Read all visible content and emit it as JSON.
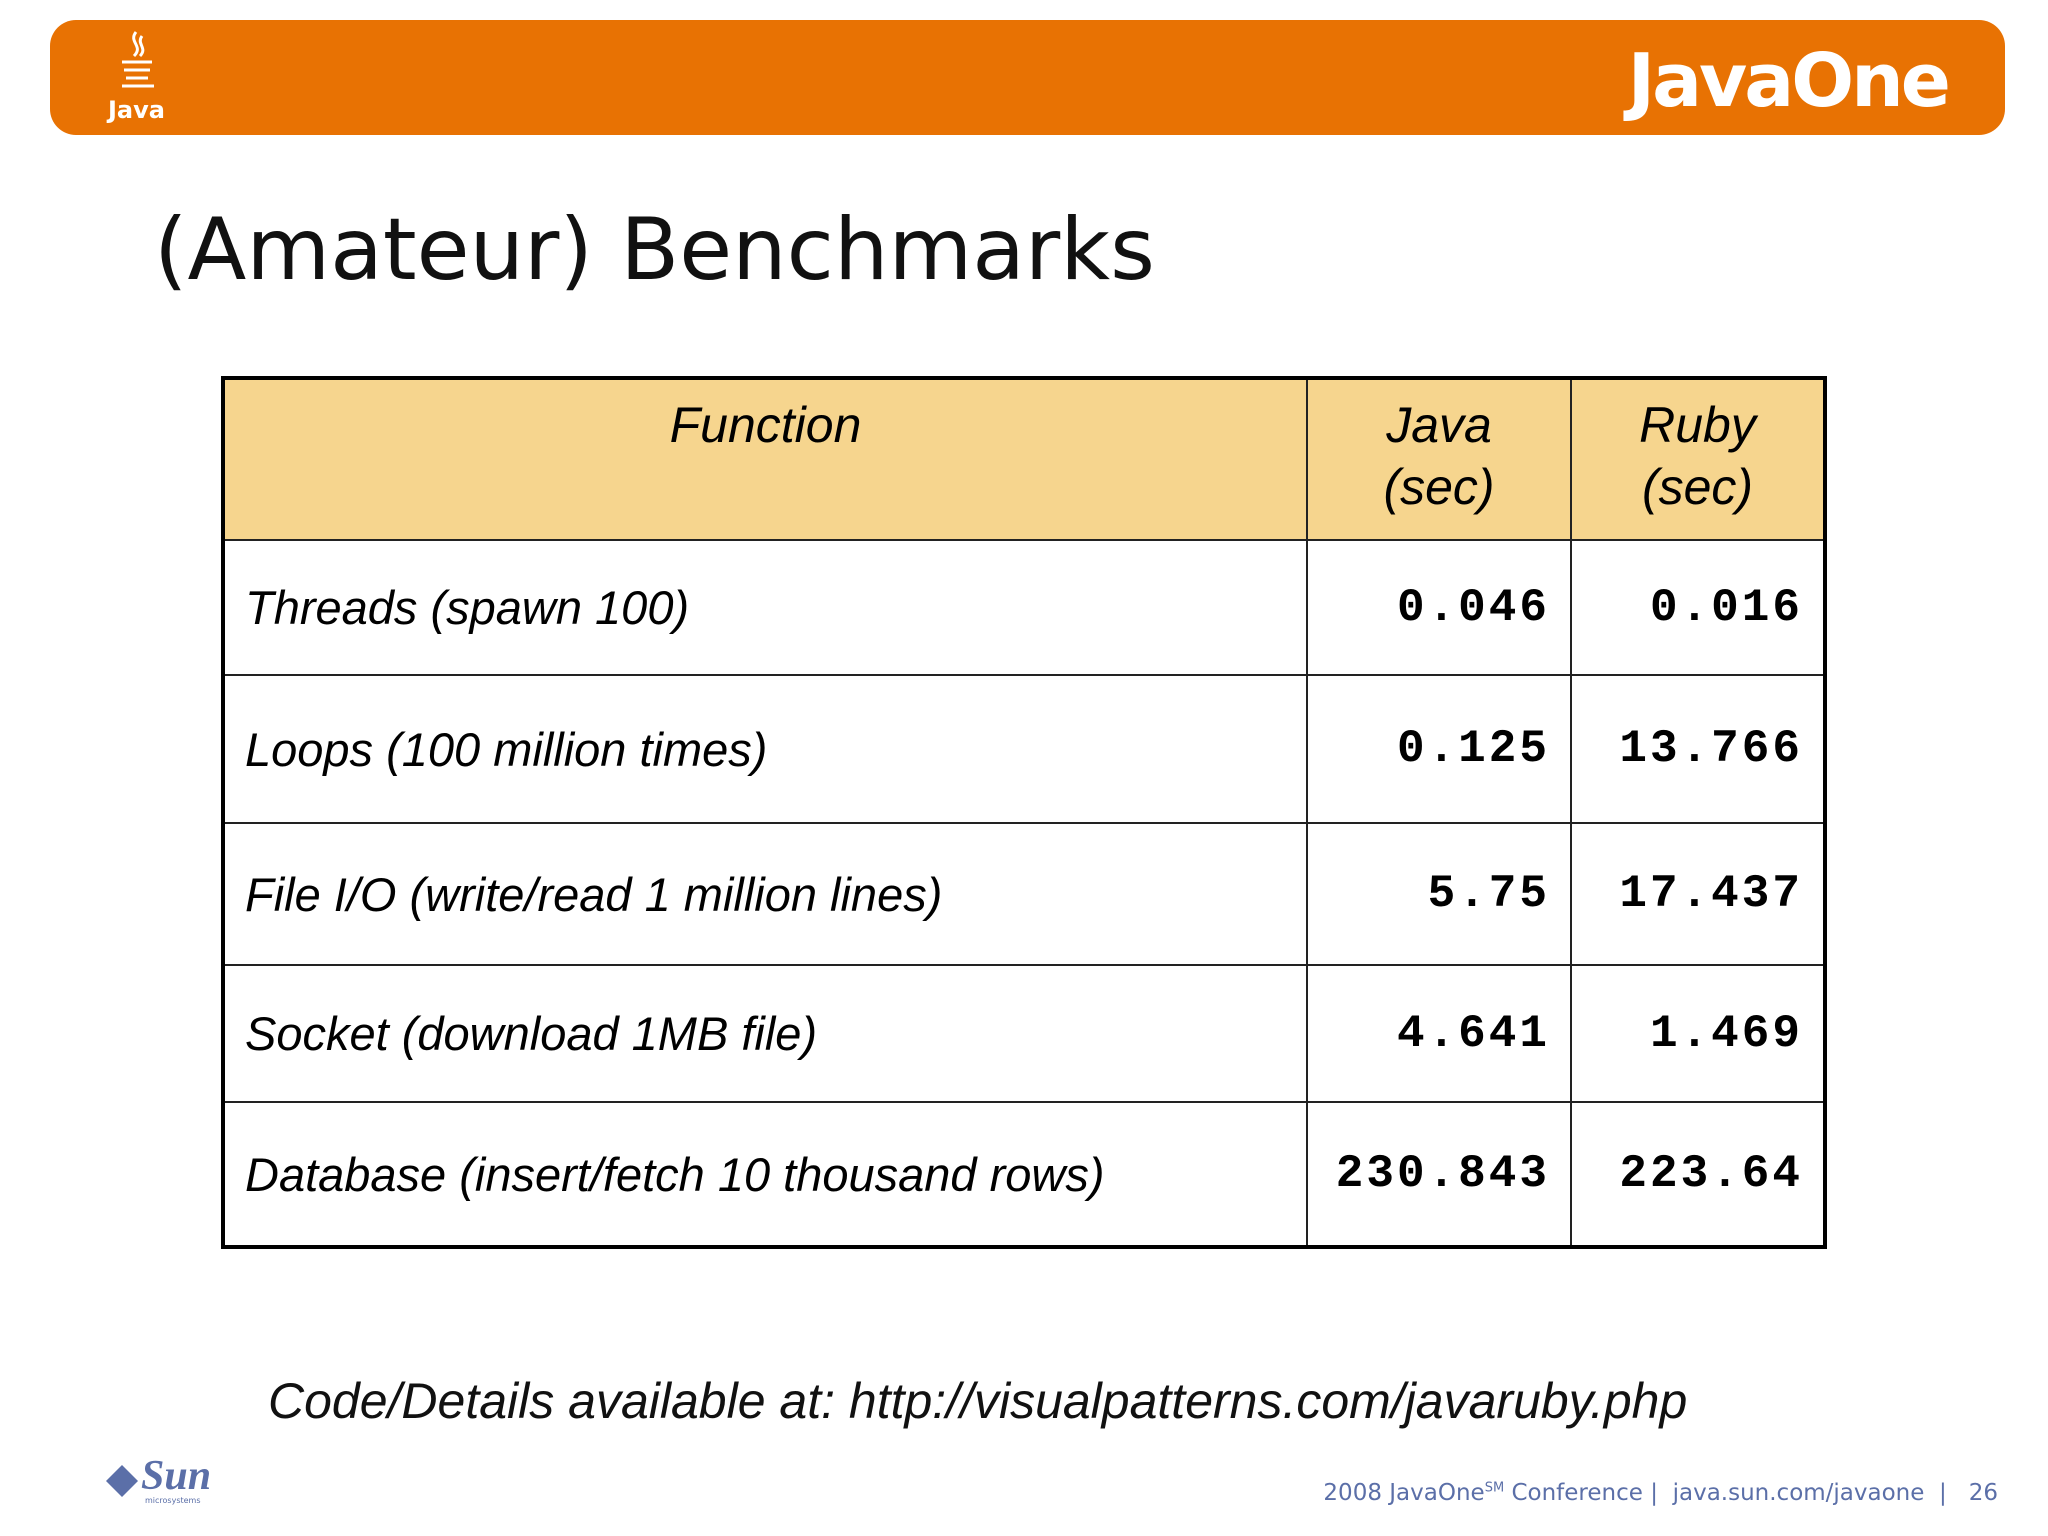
{
  "header": {
    "java_logo": "Java",
    "brand": "JavaOne"
  },
  "title": "(Amateur) Benchmarks",
  "table": {
    "columns": [
      "Function",
      "Java (sec)",
      "Ruby (sec)"
    ],
    "rows": [
      [
        "Threads (spawn 100)",
        "0.046",
        "0.016"
      ],
      [
        "Loops (100 million times)",
        "0.125",
        "13.766"
      ],
      [
        "File I/O (write/read 1 million lines)",
        "5.75",
        "17.437"
      ],
      [
        "Socket (download 1MB file)",
        "4.641",
        "1.469"
      ],
      [
        "Database (insert/fetch 10 thousand rows)",
        "230.843",
        "223.64"
      ]
    ]
  },
  "note": "Code/Details available at: http://visualpatterns.com/javaruby.php",
  "footer": {
    "sun_logo": "Sun",
    "sun_sub": "microsystems",
    "event": "2008 JavaOne",
    "mark": "SM",
    "conference": "Conference",
    "url": "java.sun.com/javaone",
    "page": "26"
  }
}
